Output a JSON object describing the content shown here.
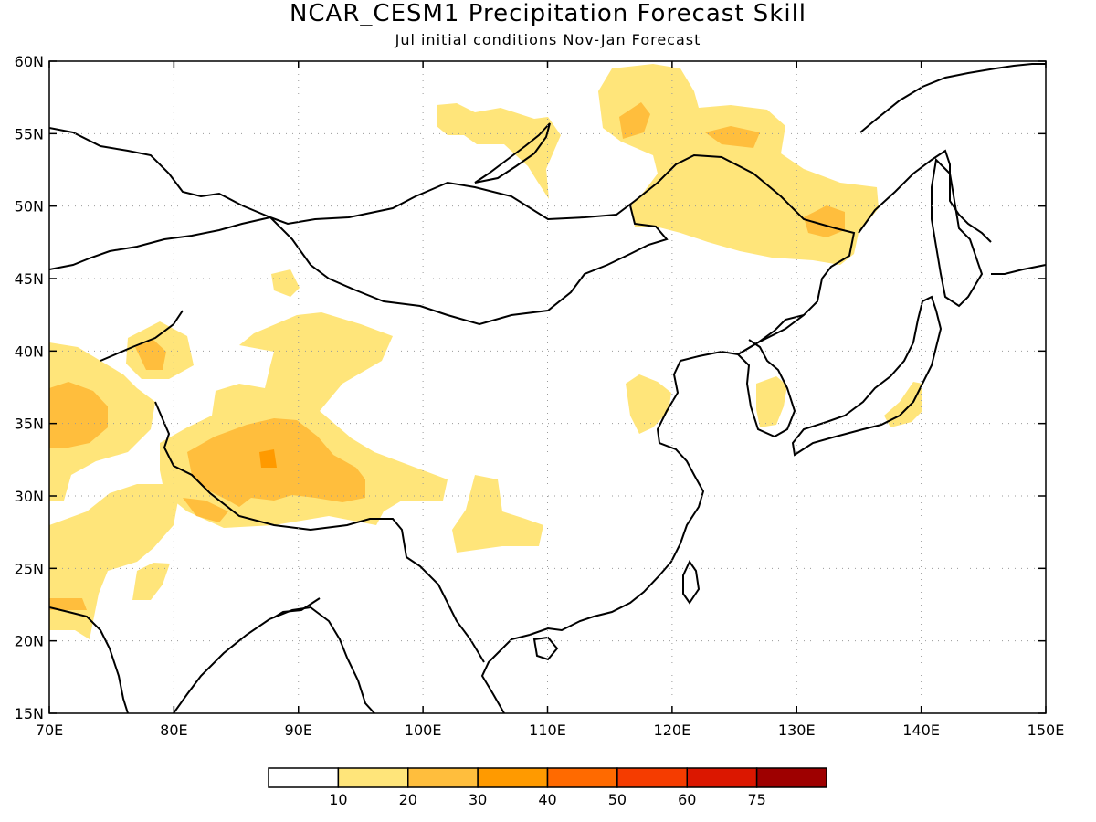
{
  "title": "NCAR_CESM1 Precipitation Forecast Skill",
  "subtitle": "Jul initial conditions   Nov-Jan Forecast",
  "map": {
    "lon_range": [
      70,
      150
    ],
    "lat_range": [
      15,
      60
    ],
    "lon_ticks": [
      "70E",
      "80E",
      "90E",
      "100E",
      "110E",
      "120E",
      "130E",
      "140E",
      "150E"
    ],
    "lat_ticks": [
      "60N",
      "55N",
      "50N",
      "45N",
      "40N",
      "35N",
      "30N",
      "25N",
      "20N",
      "15N"
    ],
    "grid": true
  },
  "colorbar": {
    "colors": [
      "#ffffff",
      "#ffe57a",
      "#ffbe3d",
      "#ff9a00",
      "#ff6a00",
      "#f53c00",
      "#db1700",
      "#9e0000"
    ],
    "labels": [
      "10",
      "20",
      "30",
      "40",
      "50",
      "60",
      "75"
    ]
  },
  "skill_regions": [
    {
      "level": 1,
      "color": "#ffe57a"
    },
    {
      "level": 2,
      "color": "#ffbe3d"
    },
    {
      "level": 3,
      "color": "#ff9a00"
    }
  ]
}
